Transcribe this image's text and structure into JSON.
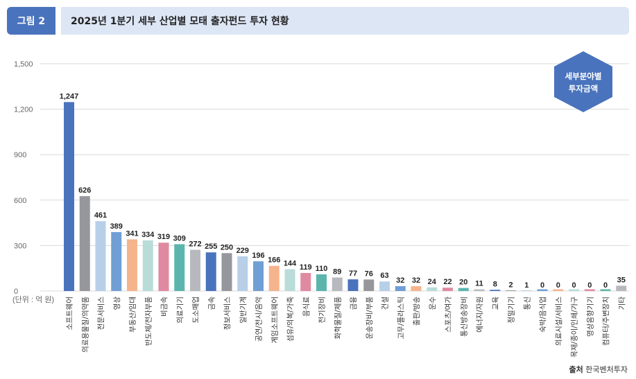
{
  "header": {
    "figure_label": "그림 2",
    "title": "2025년 1분기 세부 산업별 모태 출자펀드 투자 현황"
  },
  "legend_badge": {
    "line1": "세부분야별",
    "line2": "투자금액",
    "color": "#4a73bd"
  },
  "source": {
    "label": "출처",
    "text": "한국벤처투자"
  },
  "chart_data": {
    "type": "bar",
    "unit_label": "(단위 : 억 원)",
    "ylim": [
      0,
      1500
    ],
    "yticks": [
      0,
      300,
      600,
      900,
      1200,
      1500
    ],
    "ytick_labels": [
      "0",
      "300",
      "600",
      "900",
      "1,200",
      "1,500"
    ],
    "grid": true,
    "categories": [
      "소프트웨어",
      "의료용물질/의약품",
      "전문서비스",
      "영상",
      "부동산/임대",
      "반도체/전자부품",
      "비금속",
      "의료기기",
      "도소매업",
      "금속",
      "정보서비스",
      "일반기계",
      "공연/전시/음악",
      "게임소프트웨어",
      "섬유/의복/가죽",
      "음식료",
      "전기장비",
      "화학물질/제품",
      "금융",
      "운송장비/부품",
      "건설",
      "고무/플라스틱",
      "출판/방송",
      "운수",
      "스포츠/여가",
      "통신방송장비",
      "에너지/자원",
      "교육",
      "정밀기기",
      "통신",
      "숙박/음식업",
      "의료시설/서비스",
      "목재/종이/인쇄/가구",
      "영상음향기기",
      "컴퓨터/주변장치",
      "기타"
    ],
    "values": [
      1247,
      626,
      461,
      389,
      341,
      334,
      319,
      309,
      272,
      255,
      250,
      229,
      196,
      166,
      144,
      119,
      110,
      89,
      77,
      76,
      63,
      32,
      32,
      24,
      22,
      20,
      11,
      8,
      2,
      1,
      0,
      0,
      0,
      0,
      0,
      35
    ],
    "value_labels": [
      "1,247",
      "626",
      "461",
      "389",
      "341",
      "334",
      "319",
      "309",
      "272",
      "255",
      "250",
      "229",
      "196",
      "166",
      "144",
      "119",
      "110",
      "89",
      "77",
      "76",
      "63",
      "32",
      "32",
      "24",
      "22",
      "20",
      "11",
      "8",
      "2",
      "1",
      "0",
      "0",
      "0",
      "0",
      "0",
      "35"
    ],
    "colors": [
      "#4a73bd",
      "#95979c",
      "#b8cfe8",
      "#6f9fd4",
      "#f5b48c",
      "#b9dcd8",
      "#e08aa2",
      "#5bb5ad",
      "#b7b9bf",
      "#4a73bd",
      "#95979c",
      "#b8cfe8",
      "#6f9fd4",
      "#f5b48c",
      "#b9dcd8",
      "#e08aa2",
      "#5bb5ad",
      "#b7b9bf",
      "#4a73bd",
      "#95979c",
      "#b8cfe8",
      "#6f9fd4",
      "#f5b48c",
      "#b9dcd8",
      "#e08aa2",
      "#5bb5ad",
      "#b7b9bf",
      "#4a73bd",
      "#95979c",
      "#b8cfe8",
      "#6f9fd4",
      "#f5b48c",
      "#b9dcd8",
      "#e08aa2",
      "#5bb5ad",
      "#b7b9bf"
    ]
  }
}
